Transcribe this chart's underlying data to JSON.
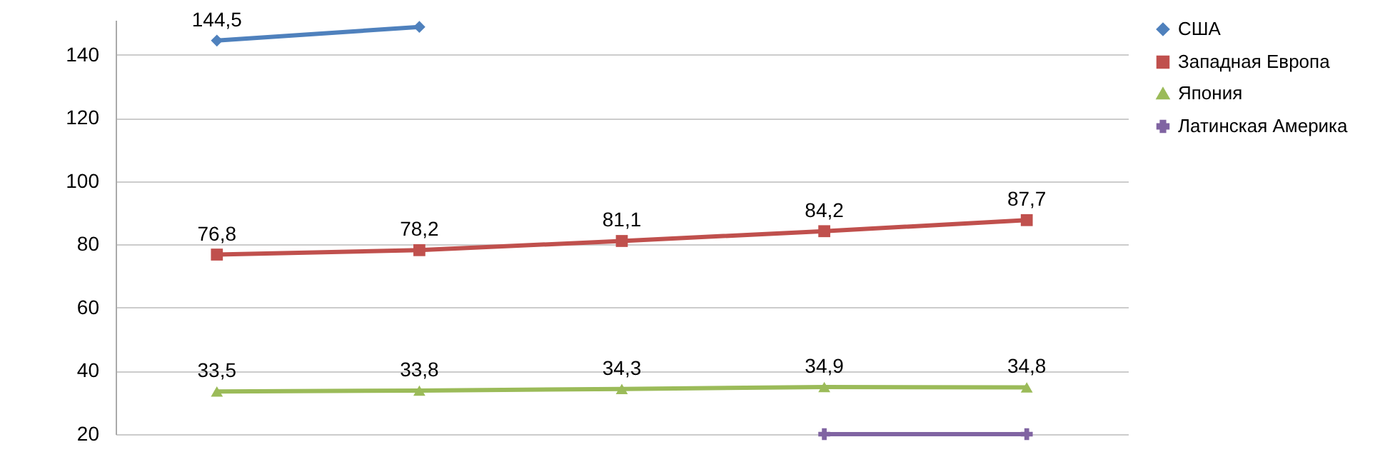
{
  "chart_data": {
    "type": "line",
    "categories": [
      null,
      null,
      null,
      null,
      null
    ],
    "series": [
      {
        "name": "США",
        "color": "#4f81bd",
        "marker": "diamond",
        "values": [
          144.5,
          148.8,
          null,
          null,
          null
        ],
        "value_labels": [
          "144,5",
          null,
          null,
          null,
          null
        ]
      },
      {
        "name": "Западная Европа",
        "color": "#c0504d",
        "marker": "square",
        "values": [
          76.8,
          78.2,
          81.1,
          84.2,
          87.7
        ],
        "value_labels": [
          "76,8",
          "78,2",
          "81,1",
          "84,2",
          "87,7"
        ]
      },
      {
        "name": "Япония",
        "color": "#9bbb59",
        "marker": "triangle",
        "values": [
          33.5,
          33.8,
          34.3,
          34.9,
          34.8
        ],
        "value_labels": [
          "33,5",
          "33,8",
          "34,3",
          "34,9",
          "34,8"
        ]
      },
      {
        "name": "Латинская Америка",
        "color": "#8064a2",
        "marker": "cross",
        "values": [
          null,
          null,
          null,
          20,
          20
        ],
        "value_labels": [
          null,
          null,
          null,
          null,
          null
        ]
      }
    ],
    "ylim": [
      20,
      151
    ],
    "yticks": [
      20,
      40,
      60,
      80,
      100,
      120,
      140
    ],
    "grid": "y",
    "legend": "right",
    "tick_labels": "y"
  }
}
